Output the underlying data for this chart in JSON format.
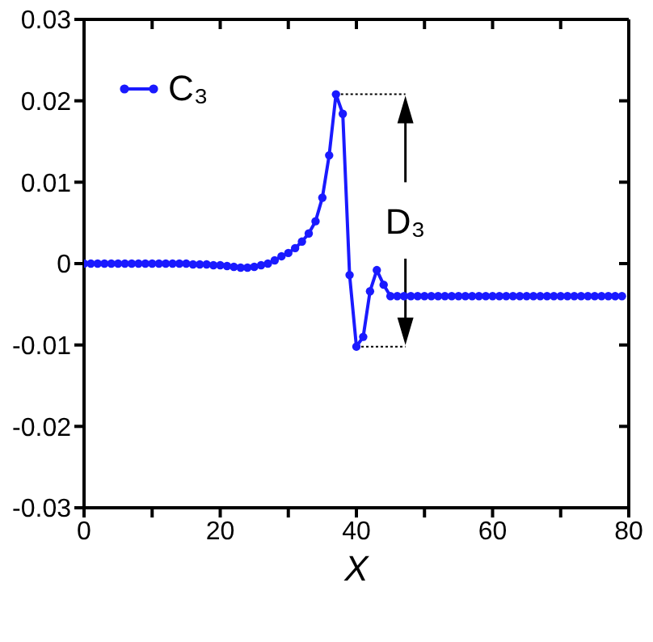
{
  "chart_data": {
    "type": "line",
    "xlabel": "X",
    "legend": "top left",
    "marker": "circle",
    "line_style": "solid",
    "grid": false,
    "xlim": [
      0,
      80
    ],
    "xticks": [
      0,
      {
        "value": 10,
        "label": null
      },
      20,
      {
        "value": 30,
        "label": null
      },
      40,
      {
        "value": 50,
        "label": null
      },
      60,
      {
        "value": 70,
        "label": null
      },
      80
    ],
    "ylim": [
      -0.03,
      0.03
    ],
    "yticks": [
      -0.03,
      -0.02,
      -0.01,
      0,
      0.01,
      0.02,
      0.03
    ],
    "annotations": [
      "D₃"
    ],
    "x": [
      0,
      1,
      2,
      3,
      4,
      5,
      6,
      7,
      8,
      9,
      10,
      11,
      12,
      13,
      14,
      15,
      16,
      17,
      18,
      19,
      20,
      21,
      22,
      23,
      24,
      25,
      26,
      27,
      28,
      29,
      30,
      31,
      32,
      33,
      34,
      35,
      36,
      37,
      38,
      39,
      40,
      41,
      42,
      43,
      44,
      45,
      46,
      47,
      48,
      49,
      50,
      51,
      52,
      53,
      54,
      55,
      56,
      57,
      58,
      59,
      60,
      61,
      62,
      63,
      64,
      65,
      66,
      67,
      68,
      69,
      70,
      71,
      72,
      73,
      74,
      75,
      76,
      77,
      78,
      79
    ],
    "series": [
      {
        "name": "C₃",
        "color": "#1a1aff",
        "values": [
          0,
          0,
          0,
          0,
          0,
          0,
          0,
          0,
          0,
          0,
          0,
          0,
          0,
          0,
          0,
          0,
          -0.0001,
          -0.0001,
          -0.0001,
          -0.0002,
          -0.0002,
          -0.0003,
          -0.0004,
          -0.0005,
          -0.0005,
          -0.0004,
          -0.0002,
          0,
          0.0004,
          0.0009,
          0.0013,
          0.0019,
          0.0027,
          0.0037,
          0.0052,
          0.0081,
          0.0133,
          0.0208,
          0.0184,
          -0.0014,
          -0.0102,
          -0.009,
          -0.0034,
          -0.0008,
          -0.0026,
          -0.004,
          -0.004,
          -0.004,
          -0.004,
          -0.004,
          -0.004,
          -0.004,
          -0.004,
          -0.004,
          -0.004,
          -0.004,
          -0.004,
          -0.004,
          -0.004,
          -0.004,
          -0.004,
          -0.004,
          -0.004,
          -0.004,
          -0.004,
          -0.004,
          -0.004,
          -0.004,
          -0.004,
          -0.004,
          -0.004,
          -0.004,
          -0.004,
          -0.004,
          -0.004,
          -0.004,
          -0.004,
          -0.004,
          -0.004,
          -0.004
        ]
      }
    ]
  }
}
